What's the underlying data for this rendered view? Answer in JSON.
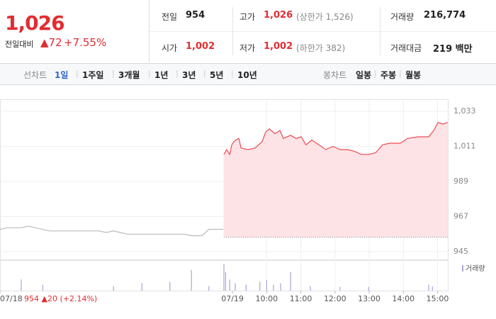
{
  "quote": {
    "price": "1,026",
    "change_label": "전일대비",
    "change": "▲72",
    "change_pct": "+7.55%"
  },
  "stats": [
    {
      "label": "전일",
      "value": "954",
      "color": "#222"
    },
    {
      "label": "고가",
      "value": "1,026",
      "note": "(상한가 1,526)",
      "color": "#e22c32"
    },
    {
      "label": "거래량",
      "value": "216,774",
      "color": "#222"
    },
    {
      "label": "시가",
      "value": "1,002",
      "color": "#e22c32"
    },
    {
      "label": "저가",
      "value": "1,002",
      "note": "(하한가 382)",
      "color": "#e22c32"
    },
    {
      "label": "거래대금",
      "value": "219 백만",
      "color": "#222"
    }
  ],
  "tabs": {
    "line_label": "선차트",
    "line": [
      "1일",
      "1주일",
      "3개월",
      "1년",
      "3년",
      "5년",
      "10년"
    ],
    "active": "1일",
    "candle_label": "봉차트",
    "candle": [
      "일봉",
      "주봉",
      "월봉"
    ]
  },
  "chart_data": {
    "type": "line",
    "series": [
      {
        "name": "07/18",
        "color": "#bbbbbb",
        "fill": null,
        "x": [
          2.2,
          2.41,
          2.82,
          3.03,
          3.24,
          3.65,
          4.27,
          5.1,
          5.31,
          5.52,
          5.72,
          5.93,
          6.35,
          6.97,
          7.59,
          7.8,
          8.11,
          8.31,
          8.42,
          8.73
        ],
        "values": [
          959,
          960,
          960,
          961,
          960,
          958,
          958,
          958,
          957,
          958,
          957,
          956,
          956,
          956,
          956,
          955,
          955,
          959,
          959,
          959
        ]
      },
      {
        "name": "07/19",
        "color": "#ec4a52",
        "fill": "#fde3e5",
        "x": [
          8.75,
          8.83,
          8.92,
          8.98,
          9.04,
          9.1,
          9.19,
          9.25,
          9.45,
          9.66,
          9.87,
          9.97,
          10.08,
          10.24,
          10.39,
          10.49,
          10.7,
          10.86,
          11.01,
          11.15,
          11.32,
          11.53,
          11.73,
          11.94,
          12.15,
          12.36,
          12.56,
          12.77,
          12.98,
          13.19,
          13.39,
          13.6,
          13.91,
          14.12,
          14.43,
          14.74,
          14.89,
          15.01,
          15.15,
          15.3
        ],
        "values": [
          1006,
          1009,
          1006,
          1012,
          1014,
          1015,
          1016,
          1010,
          1009,
          1010,
          1014,
          1020,
          1022,
          1019,
          1021,
          1016,
          1018,
          1016,
          1017,
          1012,
          1015,
          1012,
          1009,
          1011,
          1009,
          1009,
          1008,
          1006,
          1006,
          1007,
          1012,
          1013,
          1013,
          1016,
          1017,
          1017,
          1021,
          1026,
          1025,
          1026
        ]
      }
    ],
    "baseline": 954,
    "annotation": "954 ▲20 (+2.14%)",
    "xlim": [
      2.2,
      15.3
    ],
    "xticks": [
      {
        "value": 2.2,
        "label": "07/18"
      },
      {
        "value": 9,
        "label": "07/19"
      },
      {
        "value": 10,
        "label": "10:00"
      },
      {
        "value": 11,
        "label": "11:00"
      },
      {
        "value": 12,
        "label": "12:00"
      },
      {
        "value": 13,
        "label": "13:00"
      },
      {
        "value": 14,
        "label": "14:00"
      },
      {
        "value": 15,
        "label": "15:00"
      }
    ],
    "ylim": [
      945,
      1033
    ],
    "yticks": [
      {
        "value": 1033,
        "label": "1,033"
      },
      {
        "value": 1011,
        "label": "1,011"
      },
      {
        "value": 989,
        "label": "989"
      },
      {
        "value": 967,
        "label": "967"
      },
      945
    ],
    "grid": true,
    "volume": {
      "name": "거래량",
      "color": "#a9a4d6",
      "ylim": [
        0,
        40
      ],
      "x": [
        2.82,
        3.45,
        5.52,
        6.35,
        7.17,
        7.8,
        8.31,
        8.75,
        8.8,
        8.92,
        9.08,
        9.4,
        9.8,
        10.0,
        10.2,
        10.41,
        10.7,
        11.28,
        12.15,
        12.98,
        14.74,
        14.85
      ],
      "values": [
        15,
        8,
        6,
        10,
        12,
        28,
        6,
        36,
        25,
        15,
        10,
        8,
        12,
        14,
        8,
        10,
        25,
        6,
        5,
        5,
        8,
        6
      ]
    }
  }
}
